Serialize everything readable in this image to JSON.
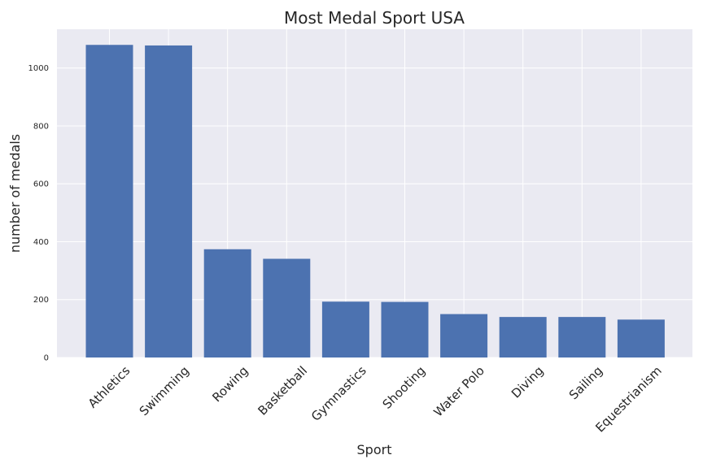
{
  "chart_data": {
    "type": "bar",
    "title": "Most Medal Sport USA",
    "xlabel": "Sport",
    "ylabel": "number of medals",
    "categories": [
      "Athletics",
      "Swimming",
      "Rowing",
      "Basketball",
      "Gymnastics",
      "Shooting",
      "Water Polo",
      "Diving",
      "Sailing",
      "Equestrianism"
    ],
    "values": [
      1080,
      1078,
      374,
      341,
      193,
      192,
      150,
      140,
      140,
      131
    ],
    "ylim": [
      0,
      1134
    ],
    "yticks": [
      0,
      200,
      400,
      600,
      800,
      1000
    ],
    "grid": true,
    "xtick_rotation": "45 degrees",
    "colors": {
      "bar": "#4c72b0",
      "plot_background": "#eaeaf2",
      "grid": "#ffffff",
      "text": "#262626"
    }
  }
}
